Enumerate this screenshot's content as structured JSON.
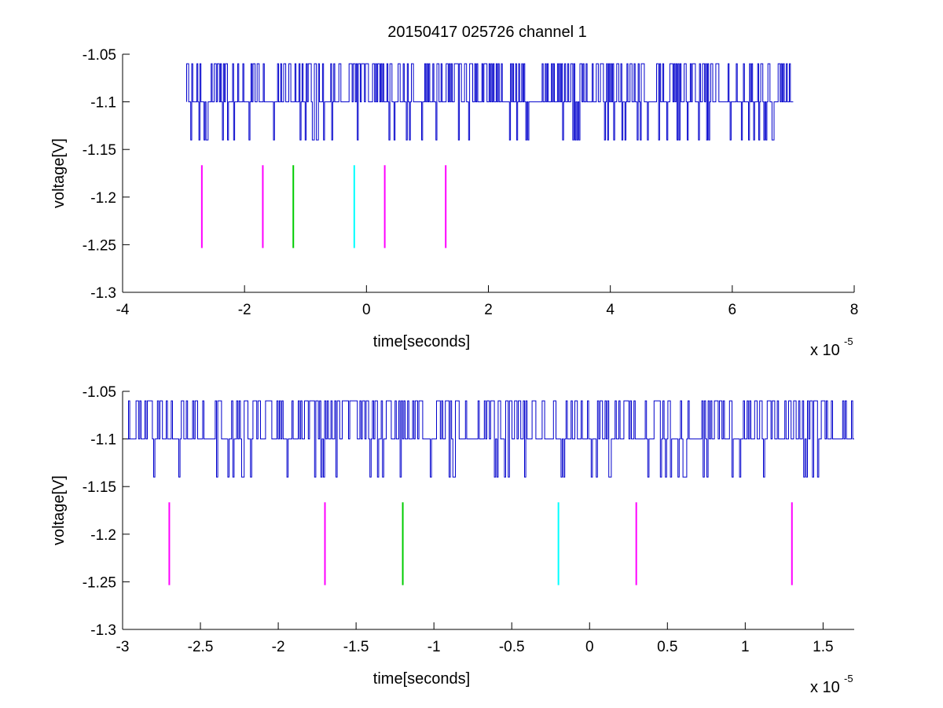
{
  "figure": {
    "title": "20150417 025726 channel 1"
  },
  "chart_data": [
    {
      "type": "line",
      "title": "20150417 025726 channel 1",
      "xlabel": "time[seconds]",
      "ylabel": "voltage[V]",
      "x_multiplier_label": "x 10",
      "x_multiplier_exponent": "-5",
      "x_scale": 1e-05,
      "xlim": [
        -4,
        8
      ],
      "ylim": [
        -1.3,
        -1.05
      ],
      "xticks": [
        -4,
        -2,
        0,
        2,
        4,
        6,
        8
      ],
      "xtick_labels": [
        "-4",
        "-2",
        "0",
        "2",
        "4",
        "6",
        "8"
      ],
      "yticks": [
        -1.05,
        -1.1,
        -1.15,
        -1.2,
        -1.25,
        -1.3
      ],
      "ytick_labels": [
        "-1.05",
        "-1.1",
        "-1.15",
        "-1.2",
        "-1.25",
        "-1.3"
      ],
      "grid": false,
      "signal": {
        "color": "#0000cc",
        "x_start": -2.95,
        "x_end": 7.0,
        "levels": [
          -1.06,
          -1.1,
          -1.14
        ],
        "baseline": -1.1
      },
      "markers": {
        "y_range": [
          -1.1665,
          -1.2535
        ],
        "items": [
          {
            "x": -2.7,
            "color": "#ff00ff"
          },
          {
            "x": -1.7,
            "color": "#ff00ff"
          },
          {
            "x": -1.2,
            "color": "#00cc00"
          },
          {
            "x": -0.2,
            "color": "#00ffff"
          },
          {
            "x": 0.3,
            "color": "#ff00ff"
          },
          {
            "x": 1.3,
            "color": "#ff00ff"
          }
        ]
      }
    },
    {
      "type": "line",
      "title": "",
      "xlabel": "time[seconds]",
      "ylabel": "voltage[V]",
      "x_multiplier_label": "x 10",
      "x_multiplier_exponent": "-5",
      "x_scale": 1e-05,
      "xlim": [
        -3.0,
        1.7
      ],
      "ylim": [
        -1.3,
        -1.05
      ],
      "xticks": [
        -3,
        -2.5,
        -2,
        -1.5,
        -1,
        -0.5,
        0,
        0.5,
        1,
        1.5
      ],
      "xtick_labels": [
        "-3",
        "-2.5",
        "-2",
        "-1.5",
        "-1",
        "-0.5",
        "0",
        "0.5",
        "1",
        "1.5"
      ],
      "yticks": [
        -1.05,
        -1.1,
        -1.15,
        -1.2,
        -1.25,
        -1.3
      ],
      "ytick_labels": [
        "-1.05",
        "-1.1",
        "-1.15",
        "-1.2",
        "-1.25",
        "-1.3"
      ],
      "grid": false,
      "signal": {
        "color": "#0000cc",
        "x_start": -2.97,
        "x_end": 1.7,
        "levels": [
          -1.06,
          -1.1,
          -1.14
        ],
        "baseline": -1.1
      },
      "markers": {
        "y_range": [
          -1.1665,
          -1.2535
        ],
        "items": [
          {
            "x": -2.7,
            "color": "#ff00ff"
          },
          {
            "x": -1.7,
            "color": "#ff00ff"
          },
          {
            "x": -1.2,
            "color": "#00cc00"
          },
          {
            "x": -0.2,
            "color": "#00ffff"
          },
          {
            "x": 0.3,
            "color": "#ff00ff"
          },
          {
            "x": 1.3,
            "color": "#ff00ff"
          }
        ]
      }
    }
  ]
}
